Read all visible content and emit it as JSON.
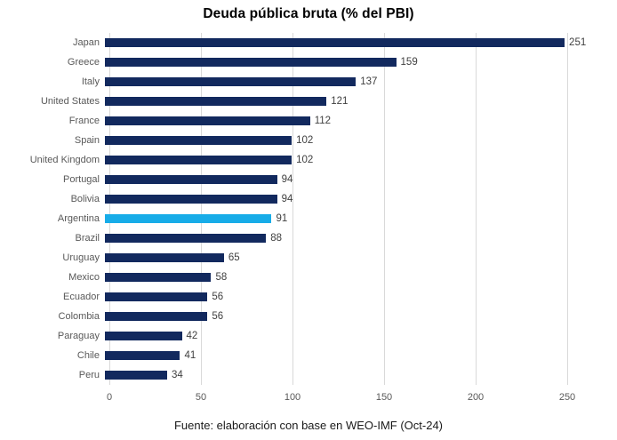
{
  "title": "Deuda pública bruta (% del PBI)",
  "footer": {
    "source": "Fuente: elaboración con base en WEO-IMF (Oct-24)"
  },
  "colors": {
    "bar": "#12295E",
    "highlight_bar": "#17ACE8",
    "gridline": "#D9D9D9",
    "category_label": "#595959",
    "value_label": "#404040",
    "tick_label": "#595959",
    "title": "#000000"
  },
  "chart_data": {
    "type": "bar",
    "orientation": "horizontal",
    "title": "Deuda pública bruta (% del PBI)",
    "categories": [
      "Japan",
      "Greece",
      "Italy",
      "United States",
      "France",
      "Spain",
      "United Kingdom",
      "Portugal",
      "Bolivia",
      "Argentina",
      "Brazil",
      "Uruguay",
      "Mexico",
      "Ecuador",
      "Colombia",
      "Paraguay",
      "Chile",
      "Peru"
    ],
    "values": [
      251,
      159,
      137,
      121,
      112,
      102,
      102,
      94,
      94,
      91,
      88,
      65,
      58,
      56,
      56,
      42,
      41,
      34
    ],
    "highlighted_category": "Argentina",
    "value_labels": true,
    "xticks": [
      0,
      50,
      100,
      150,
      200,
      250
    ],
    "xlim": [
      0,
      250
    ],
    "grid": "vertical",
    "legend": "none",
    "source_note": "Fuente: elaboración con base en WEO-IMF (Oct-24)"
  }
}
